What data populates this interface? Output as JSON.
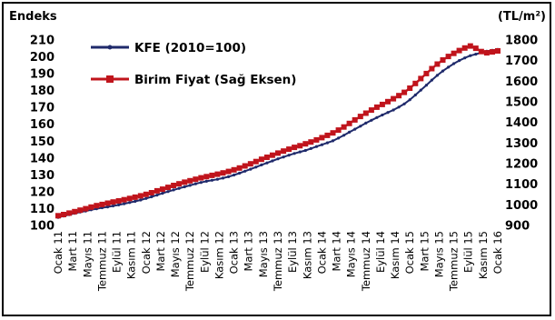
{
  "chart_data": {
    "type": "line",
    "left_axis_title": "Endeks",
    "right_axis_title": "(TL/m²)",
    "ylim_left": [
      100,
      210
    ],
    "yticks_left": [
      100,
      110,
      120,
      130,
      140,
      150,
      160,
      170,
      180,
      190,
      200,
      210
    ],
    "ylim_right": [
      900,
      1800
    ],
    "yticks_right": [
      900,
      1000,
      1100,
      1200,
      1300,
      1400,
      1500,
      1600,
      1700,
      1800
    ],
    "x_tick_labels": [
      "Ocak 11",
      "Mart 11",
      "Mayıs 11",
      "Temmuz 11",
      "Eylül 11",
      "Kasım 11",
      "Ocak 12",
      "Mart 12",
      "Mayıs 12",
      "Temmuz 12",
      "Eylül 12",
      "Kasım 12",
      "Ocak 13",
      "Mart 13",
      "Mayıs 13",
      "Temmuz 13",
      "Eylül 13",
      "Kasım 13",
      "Ocak 14",
      "Mart 14",
      "Mayıs 14",
      "Temmuz 14",
      "Eylül 14",
      "Kasım 14",
      "Ocak 15",
      "Mart 15",
      "Mayıs 15",
      "Temmuz 15",
      "Eylül 15",
      "Kasım 15",
      "Ocak 16"
    ],
    "grid": false,
    "legend_position": "top-left",
    "series": [
      {
        "name": "KFE (2010=100)",
        "axis": "left",
        "color": "#1f2a6b",
        "values": [
          104.8,
          105.6,
          106.4,
          107.2,
          107.9,
          108.6,
          109.3,
          109.9,
          110.5,
          111.0,
          111.6,
          112.2,
          112.9,
          113.6,
          114.3,
          115.1,
          116.0,
          117.0,
          118.0,
          119.1,
          120.1,
          121.1,
          122.0,
          122.9,
          123.8,
          124.7,
          125.5,
          126.2,
          126.8,
          127.4,
          128.1,
          128.9,
          129.9,
          131.0,
          132.2,
          133.4,
          134.6,
          135.9,
          137.1,
          138.3,
          139.5,
          140.6,
          141.7,
          142.7,
          143.6,
          144.5,
          145.6,
          146.8,
          147.9,
          149.0,
          150.2,
          151.8,
          153.5,
          155.3,
          157.1,
          158.9,
          160.7,
          162.4,
          164.0,
          165.5,
          167.0,
          168.5,
          170.2,
          172.1,
          174.6,
          177.4,
          180.3,
          183.2,
          186.2,
          189.0,
          191.6,
          193.9,
          196.0,
          197.8,
          199.4,
          200.7,
          201.6,
          202.5,
          203.3,
          203.9,
          204.4
        ],
        "values_monthly_note": ""
      },
      {
        "name": "Birim Fiyat (Sağ Eksen)",
        "axis": "right",
        "color": "#c0141c",
        "values": [
          947,
          953,
          960,
          967,
          974,
          981,
          989,
          996,
          1002,
          1008,
          1014,
          1019,
          1025,
          1031,
          1037,
          1044,
          1051,
          1059,
          1068,
          1076,
          1085,
          1094,
          1102,
          1110,
          1117,
          1124,
          1131,
          1137,
          1143,
          1149,
          1155,
          1162,
          1170,
          1179,
          1189,
          1199,
          1210,
          1221,
          1231,
          1241,
          1251,
          1261,
          1270,
          1279,
          1287,
          1296,
          1305,
          1315,
          1326,
          1337,
          1349,
          1363,
          1378,
          1395,
          1412,
          1429,
          1445,
          1460,
          1474,
          1487,
          1501,
          1515,
          1530,
          1546,
          1566,
          1589,
          1613,
          1637,
          1661,
          1683,
          1703,
          1720,
          1735,
          1749,
          1761,
          1771,
          1760,
          1744,
          1738,
          1742,
          1747
        ]
      }
    ]
  }
}
